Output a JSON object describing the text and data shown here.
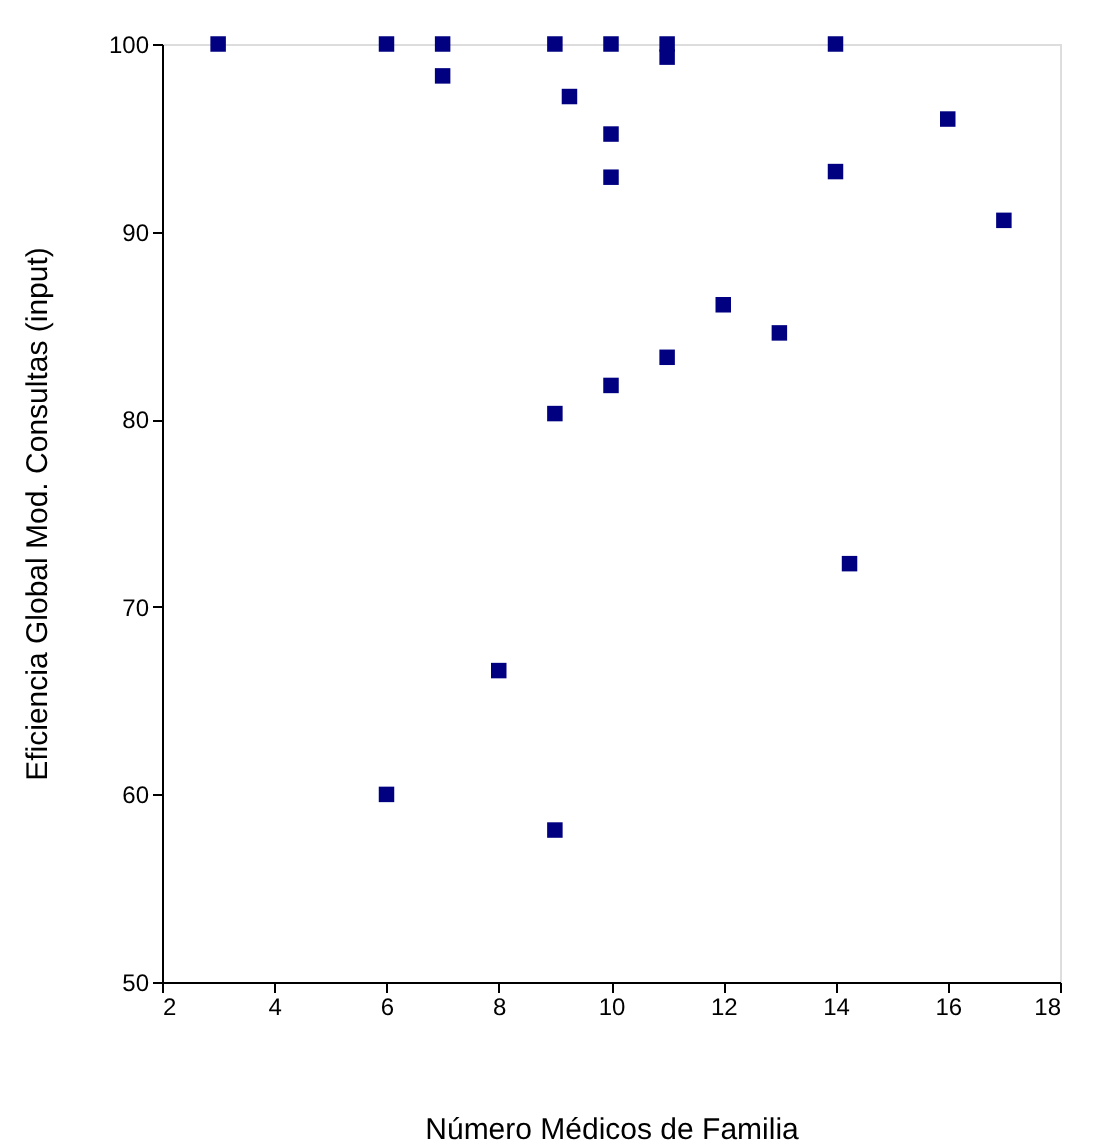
{
  "chart_data": {
    "type": "scatter",
    "xlabel": "Número Médicos de Familia",
    "ylabel": "Eficiencia Global Mod. Consultas (input)",
    "x": [
      3,
      6,
      7,
      7,
      9,
      9.26,
      10,
      10,
      10,
      10,
      9,
      11,
      11,
      14,
      16,
      14,
      17,
      12,
      13,
      11,
      14.25,
      8,
      6,
      9
    ],
    "series": [
      {
        "color": "#000080",
        "values": [
          100,
          100,
          100,
          98.3,
          100,
          97.2,
          100,
          95.2,
          92.9,
          81.8,
          80.3,
          100,
          99.3,
          100,
          96.0,
          93.2,
          90.6,
          86.1,
          84.6,
          83.3,
          72.3,
          66.6,
          60.0,
          58.1
        ]
      }
    ],
    "xlim": [
      2,
      18
    ],
    "xticks": [
      2,
      4,
      6,
      8,
      10,
      12,
      14,
      16,
      18
    ],
    "ylim": [
      50,
      100
    ],
    "yticks": [
      50,
      60,
      70,
      80,
      90,
      100
    ],
    "grid": false,
    "marker": "square",
    "legend": false
  }
}
